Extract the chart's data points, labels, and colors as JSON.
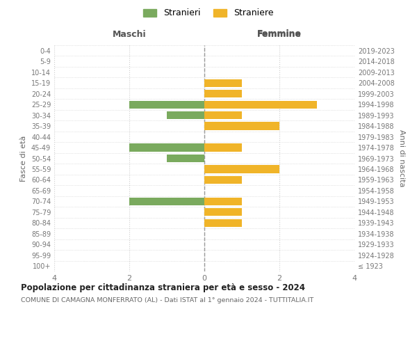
{
  "age_groups": [
    "100+",
    "95-99",
    "90-94",
    "85-89",
    "80-84",
    "75-79",
    "70-74",
    "65-69",
    "60-64",
    "55-59",
    "50-54",
    "45-49",
    "40-44",
    "35-39",
    "30-34",
    "25-29",
    "20-24",
    "15-19",
    "10-14",
    "5-9",
    "0-4"
  ],
  "birth_years": [
    "≤ 1923",
    "1924-1928",
    "1929-1933",
    "1934-1938",
    "1939-1943",
    "1944-1948",
    "1949-1953",
    "1954-1958",
    "1959-1963",
    "1964-1968",
    "1969-1973",
    "1974-1978",
    "1979-1983",
    "1984-1988",
    "1989-1993",
    "1994-1998",
    "1999-2003",
    "2004-2008",
    "2009-2013",
    "2014-2018",
    "2019-2023"
  ],
  "maschi": [
    0,
    0,
    0,
    0,
    0,
    0,
    2,
    0,
    0,
    0,
    1,
    2,
    0,
    0,
    1,
    2,
    0,
    0,
    0,
    0,
    0
  ],
  "femmine": [
    0,
    0,
    0,
    0,
    1,
    1,
    1,
    0,
    1,
    2,
    0,
    1,
    0,
    2,
    1,
    3,
    1,
    1,
    0,
    0,
    0
  ],
  "male_color": "#7aaa5e",
  "female_color": "#f0b429",
  "title": "Popolazione per cittadinanza straniera per età e sesso - 2024",
  "subtitle": "COMUNE DI CAMAGNA MONFERRATO (AL) - Dati ISTAT al 1° gennaio 2024 - TUTTITALIA.IT",
  "legend_male": "Stranieri",
  "legend_female": "Straniere",
  "xlabel_left": "Maschi",
  "xlabel_right": "Femmine",
  "ylabel_left": "Fasce di età",
  "ylabel_right": "Anni di nascita",
  "xlim": 4,
  "background_color": "#ffffff",
  "grid_color": "#cccccc"
}
